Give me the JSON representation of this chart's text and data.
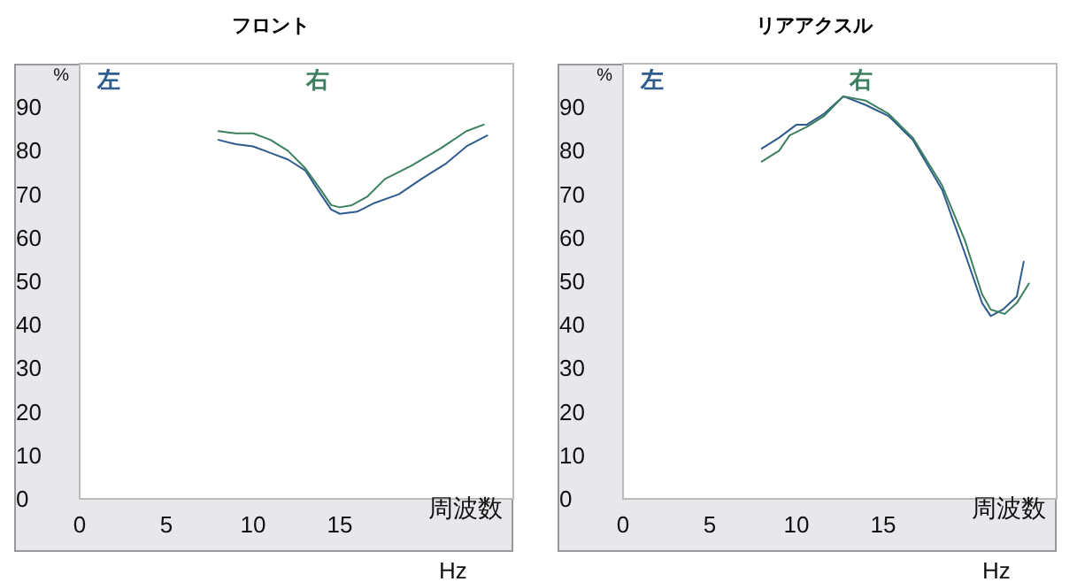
{
  "chart_data": [
    {
      "type": "line",
      "title": "フロント",
      "xlabel": "Hz",
      "ylabel": "%",
      "annotations": [
        "周波数"
      ],
      "legend": "top left",
      "marker": "none",
      "grid": false,
      "xlim": [
        0,
        25
      ],
      "xticks": [
        0,
        5,
        10,
        15
      ],
      "ylim": [
        0,
        100
      ],
      "yticks": [
        0,
        10,
        20,
        30,
        40,
        50,
        60,
        70,
        80,
        90
      ],
      "series": [
        {
          "name": "左",
          "color": "#2f5b8e",
          "x": [
            8.0,
            9.0,
            10.0,
            11.0,
            12.0,
            13.0,
            13.9,
            14.5,
            15.0,
            16.0,
            17.0,
            18.4,
            19.7,
            21.1,
            22.3,
            23.5
          ],
          "values": [
            82.5,
            81.5,
            81,
            79.5,
            78,
            75.5,
            70,
            66.5,
            65.5,
            66,
            68,
            70,
            73.5,
            77,
            81,
            83.5
          ]
        },
        {
          "name": "右",
          "color": "#3d8060",
          "x": [
            8.0,
            9.0,
            10.0,
            11.0,
            12.0,
            13.0,
            13.9,
            14.5,
            15.0,
            15.7,
            16.6,
            17.6,
            19.1,
            20.8,
            22.3,
            23.3
          ],
          "values": [
            84.5,
            84,
            84,
            82.5,
            80,
            76,
            71,
            67.5,
            67,
            67.5,
            69.5,
            73.5,
            76.5,
            80.5,
            84.5,
            86
          ]
        }
      ]
    },
    {
      "type": "line",
      "title": "リアアクスル",
      "xlabel": "Hz",
      "ylabel": "%",
      "annotations": [
        "周波数"
      ],
      "legend": "top left",
      "marker": "none",
      "grid": false,
      "xlim": [
        0,
        25
      ],
      "xticks": [
        0,
        5,
        10,
        15
      ],
      "ylim": [
        0,
        100
      ],
      "yticks": [
        0,
        10,
        20,
        30,
        40,
        50,
        60,
        70,
        80,
        90
      ],
      "series": [
        {
          "name": "左",
          "color": "#2f5b8e",
          "x": [
            8.0,
            9.0,
            10.0,
            10.6,
            11.6,
            12.7,
            14.0,
            15.3,
            16.7,
            18.4,
            19.7,
            20.7,
            21.2,
            21.9,
            22.7,
            23.1
          ],
          "values": [
            80.5,
            83,
            86,
            86,
            88.5,
            92.5,
            90.5,
            88,
            82.5,
            71,
            56.5,
            45,
            42,
            43.5,
            46.5,
            54.5
          ]
        },
        {
          "name": "右",
          "color": "#3d8060",
          "x": [
            8.0,
            9.0,
            9.6,
            10.6,
            11.6,
            12.7,
            14.0,
            15.3,
            16.7,
            18.4,
            19.7,
            20.7,
            21.2,
            22.0,
            22.7,
            23.4
          ],
          "values": [
            77.5,
            80,
            83.5,
            85.5,
            88,
            92.5,
            91.5,
            88.5,
            83,
            72,
            59.5,
            47,
            43.5,
            42.5,
            45,
            49.5
          ]
        }
      ]
    }
  ]
}
